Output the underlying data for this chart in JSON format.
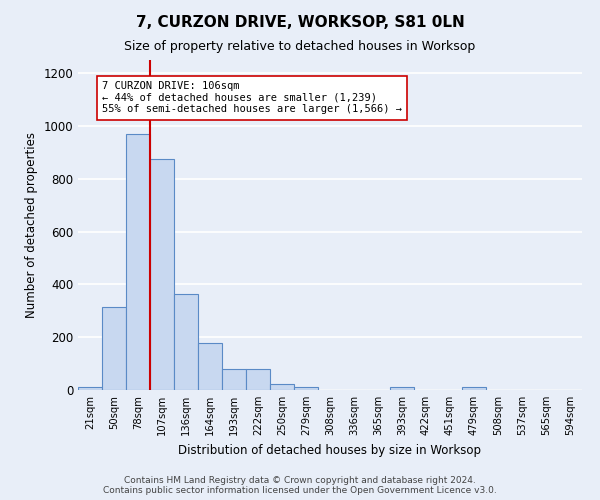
{
  "title": "7, CURZON DRIVE, WORKSOP, S81 0LN",
  "subtitle": "Size of property relative to detached houses in Worksop",
  "xlabel": "Distribution of detached houses by size in Worksop",
  "ylabel": "Number of detached properties",
  "bin_labels": [
    "21sqm",
    "50sqm",
    "78sqm",
    "107sqm",
    "136sqm",
    "164sqm",
    "193sqm",
    "222sqm",
    "250sqm",
    "279sqm",
    "308sqm",
    "336sqm",
    "365sqm",
    "393sqm",
    "422sqm",
    "451sqm",
    "479sqm",
    "508sqm",
    "537sqm",
    "565sqm",
    "594sqm"
  ],
  "bar_heights": [
    12,
    313,
    970,
    875,
    365,
    178,
    80,
    80,
    23,
    13,
    0,
    0,
    0,
    10,
    0,
    0,
    12,
    0,
    0,
    0,
    0
  ],
  "bar_color": "#c8d8f0",
  "bar_edge_color": "#5a8ac6",
  "ylim": [
    0,
    1250
  ],
  "yticks": [
    0,
    200,
    400,
    600,
    800,
    1000,
    1200
  ],
  "property_line_x": 2.5,
  "property_line_color": "#cc0000",
  "annotation_text": "7 CURZON DRIVE: 106sqm\n← 44% of detached houses are smaller (1,239)\n55% of semi-detached houses are larger (1,566) →",
  "annotation_box_color": "#ffffff",
  "annotation_box_edge": "#cc0000",
  "footer": "Contains HM Land Registry data © Crown copyright and database right 2024.\nContains public sector information licensed under the Open Government Licence v3.0.",
  "background_color": "#e8eef8",
  "grid_color": "#ffffff"
}
